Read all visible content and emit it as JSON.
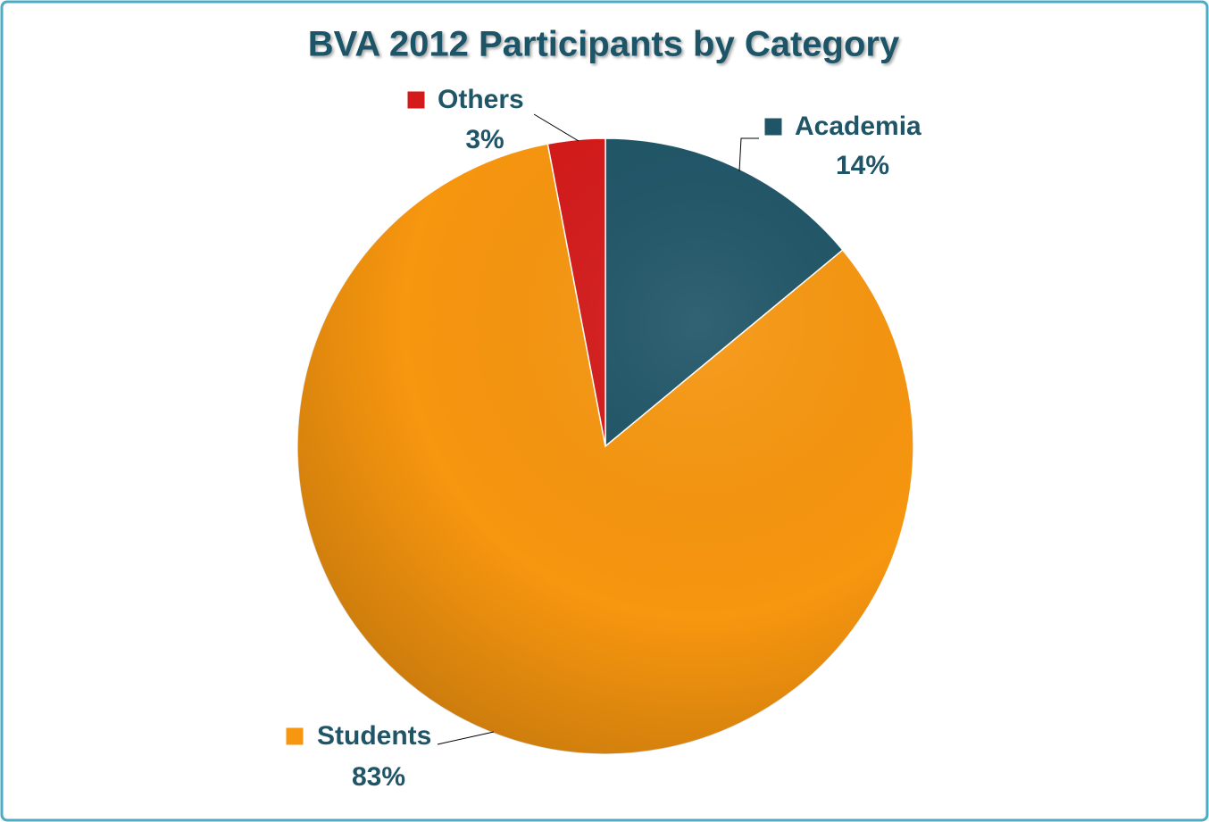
{
  "chart_data": {
    "type": "pie",
    "title": "BVA 2012 Participants by Category",
    "categories": [
      "Academia",
      "Students",
      "Others"
    ],
    "values": [
      14,
      83,
      3
    ],
    "value_labels": [
      "14%",
      "83%",
      "3%"
    ],
    "colors": [
      "#1f5567",
      "#f7960f",
      "#d41a1a"
    ]
  }
}
